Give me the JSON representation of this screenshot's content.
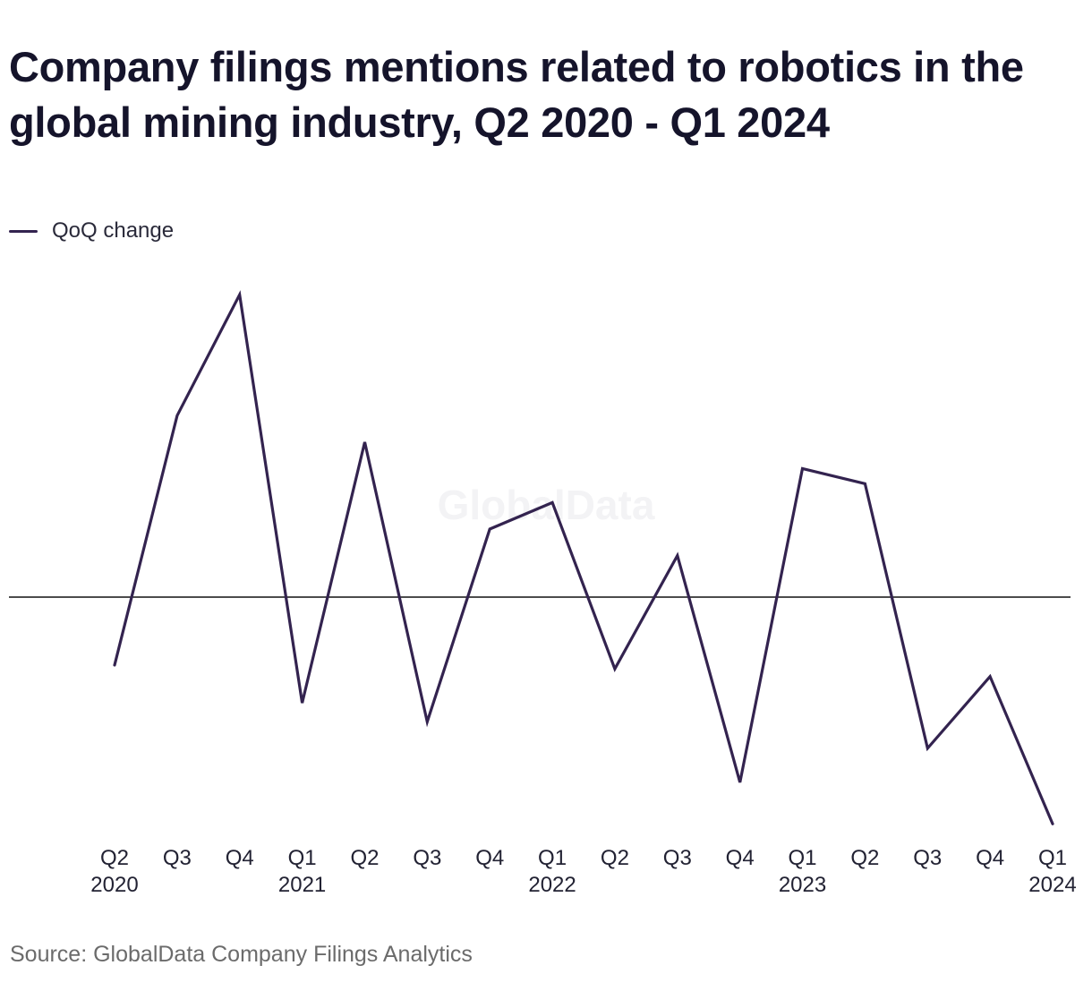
{
  "title": "Company filings mentions related to robotics in the global mining industry, Q2 2020 - Q1 2024",
  "legend": {
    "label": "QoQ change",
    "color": "#33234f"
  },
  "watermark": "GlobalData",
  "source": "Source: GlobalData Company Filings Analytics",
  "chart_data": {
    "type": "line",
    "title": "Company filings mentions related to robotics in the global mining industry, Q2 2020 - Q1 2024",
    "xlabel": "",
    "ylabel": "",
    "grid": false,
    "legend_position": "top-left",
    "zero_line": true,
    "ylim": [
      -0.6,
      0.81
    ],
    "categories": [
      [
        "Q2",
        "2020"
      ],
      [
        "Q3",
        ""
      ],
      [
        "Q4",
        ""
      ],
      [
        "Q1",
        "2021"
      ],
      [
        "Q2",
        ""
      ],
      [
        "Q3",
        ""
      ],
      [
        "Q4",
        ""
      ],
      [
        "Q1",
        "2022"
      ],
      [
        "Q2",
        ""
      ],
      [
        "Q3",
        ""
      ],
      [
        "Q4",
        ""
      ],
      [
        "Q1",
        "2023"
      ],
      [
        "Q2",
        ""
      ],
      [
        "Q3",
        ""
      ],
      [
        "Q4",
        ""
      ],
      [
        "Q1",
        "2024"
      ]
    ],
    "series": [
      {
        "name": "QoQ change",
        "color": "#33234f",
        "values": [
          -0.18,
          0.48,
          0.8,
          -0.28,
          0.41,
          -0.33,
          0.18,
          0.25,
          -0.19,
          0.11,
          -0.49,
          0.34,
          0.3,
          -0.4,
          -0.21,
          -0.6
        ]
      }
    ]
  }
}
